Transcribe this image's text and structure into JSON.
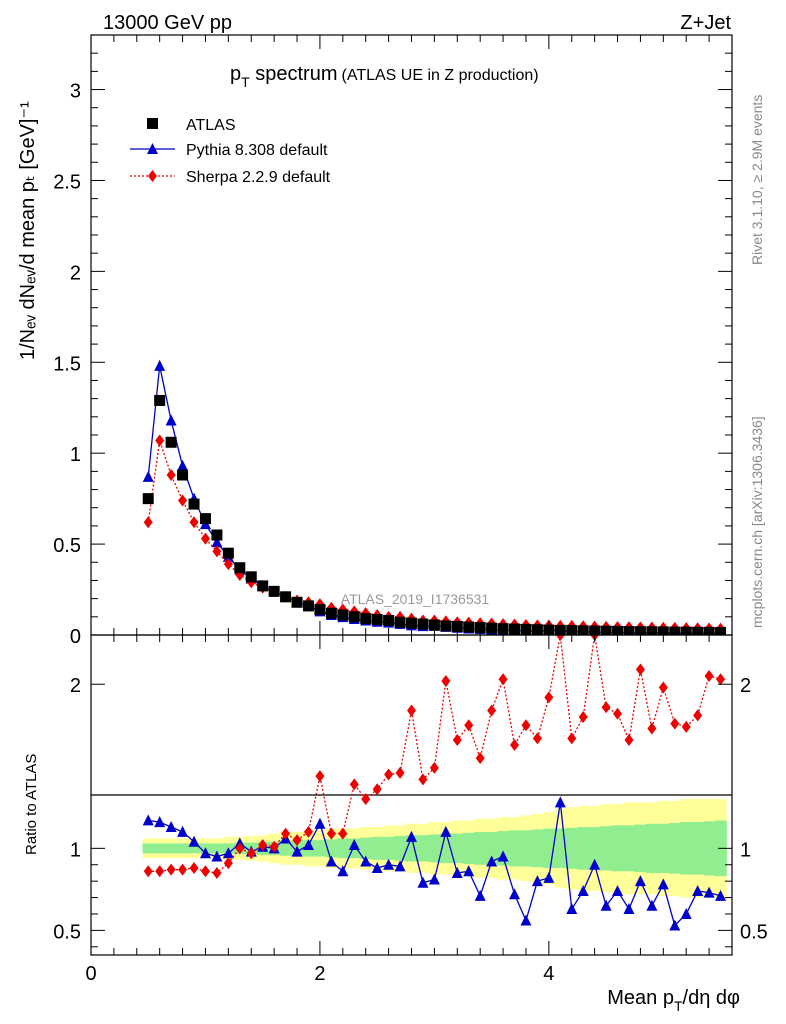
{
  "header": {
    "left": "13000 GeV pp",
    "right": "Z+Jet"
  },
  "side_texts": {
    "rivet": "Rivet 3.1.10, ≥ 2.9M events",
    "mcplots": "mcplots.cern.ch [arXiv:1306.3436]"
  },
  "watermark": "ATLAS_2019_I1736531",
  "chart_data": [
    {
      "type": "scatter",
      "title_main": "p",
      "title_sub": "T",
      "title_rest": " spectrum",
      "title_note": "(ATLAS UE in Z production)",
      "ylabel": "1/Nₑᵥ dNₑᵥ/d mean pₜ [GeV]⁻¹",
      "ylim": [
        0,
        3.3
      ],
      "xlim": [
        0,
        5.6
      ],
      "yticks": [
        0,
        0.5,
        1,
        1.5,
        2,
        2.5,
        3
      ],
      "ytick_labels": [
        "0",
        "0.5",
        "1",
        "1.5",
        "2",
        "2.5",
        "3"
      ],
      "legend_position": "top-left",
      "x": [
        0.5,
        0.6,
        0.7,
        0.8,
        0.9,
        1.0,
        1.1,
        1.2,
        1.3,
        1.4,
        1.5,
        1.6,
        1.7,
        1.8,
        1.9,
        2.0,
        2.1,
        2.2,
        2.3,
        2.4,
        2.5,
        2.6,
        2.7,
        2.8,
        2.9,
        3.0,
        3.1,
        3.2,
        3.3,
        3.4,
        3.5,
        3.6,
        3.7,
        3.8,
        3.9,
        4.0,
        4.1,
        4.2,
        4.3,
        4.4,
        4.5,
        4.6,
        4.7,
        4.8,
        4.9,
        5.0,
        5.1,
        5.2,
        5.3,
        5.4,
        5.5
      ],
      "series": [
        {
          "name": "ATLAS",
          "color": "#000000",
          "marker": "square",
          "values": [
            0.75,
            1.29,
            1.06,
            0.88,
            0.72,
            0.64,
            0.55,
            0.45,
            0.37,
            0.32,
            0.27,
            0.24,
            0.21,
            0.18,
            0.16,
            0.14,
            0.12,
            0.11,
            0.1,
            0.09,
            0.085,
            0.08,
            0.07,
            0.065,
            0.06,
            0.055,
            0.05,
            0.047,
            0.044,
            0.041,
            0.038,
            0.035,
            0.033,
            0.031,
            0.029,
            0.027,
            0.025,
            0.024,
            0.023,
            0.022,
            0.021,
            0.02,
            0.019,
            0.018,
            0.018,
            0.017,
            0.016,
            0.016,
            0.015,
            0.015,
            0.014
          ]
        },
        {
          "name": "Pythia 8.308 default",
          "color": "#0000cc",
          "marker": "triangle",
          "values": [
            0.87,
            1.48,
            1.18,
            0.93,
            0.75,
            0.61,
            0.51,
            0.43,
            0.36,
            0.31,
            0.27,
            0.24,
            0.21,
            0.18,
            0.16,
            0.13,
            0.11,
            0.098,
            0.088,
            0.08,
            0.073,
            0.068,
            0.061,
            0.053,
            0.049,
            0.05,
            0.045,
            0.04,
            0.036,
            0.033,
            0.03,
            0.028,
            0.026,
            0.022,
            0.022,
            0.022,
            0.027,
            0.018,
            0.017,
            0.016,
            0.015,
            0.014,
            0.013,
            0.012,
            0.012,
            0.011,
            0.01,
            0.01,
            0.009,
            0.01,
            0.01
          ]
        },
        {
          "name": "Sherpa 2.2.9 default",
          "color": "#ee0000",
          "marker": "diamond",
          "values": [
            0.62,
            1.07,
            0.88,
            0.74,
            0.62,
            0.53,
            0.46,
            0.39,
            0.33,
            0.29,
            0.26,
            0.24,
            0.21,
            0.19,
            0.18,
            0.17,
            0.15,
            0.14,
            0.13,
            0.12,
            0.11,
            0.1,
            0.1,
            0.09,
            0.08,
            0.08,
            0.075,
            0.07,
            0.068,
            0.065,
            0.063,
            0.06,
            0.058,
            0.055,
            0.053,
            0.052,
            0.05,
            0.05,
            0.048,
            0.047,
            0.045,
            0.044,
            0.043,
            0.042,
            0.041,
            0.04,
            0.039,
            0.038,
            0.037,
            0.036,
            0.035
          ]
        }
      ]
    },
    {
      "type": "scatter",
      "ylabel": "Ratio to ATLAS",
      "xlabel_main": "Mean p",
      "xlabel_sub": "T",
      "xlabel_rest": "/dη dφ",
      "ylim": [
        0.35,
        2.3
      ],
      "xlim": [
        0,
        5.6
      ],
      "reference_line": 1,
      "yticks": [
        0.5,
        1,
        2
      ],
      "ytick_labels": [
        "0.5",
        "1",
        "2"
      ],
      "xticks": [
        0,
        2,
        4
      ],
      "xtick_labels": [
        "0",
        "2",
        "4"
      ],
      "band_colors": {
        "inner": "#90ee90",
        "outer": "#ffff99"
      },
      "bands": {
        "inner_half_width": [
          0.03,
          0.03,
          0.03,
          0.03,
          0.03,
          0.03,
          0.03,
          0.03,
          0.035,
          0.035,
          0.04,
          0.04,
          0.045,
          0.05,
          0.05,
          0.05,
          0.055,
          0.06,
          0.06,
          0.065,
          0.07,
          0.07,
          0.075,
          0.08,
          0.08,
          0.085,
          0.09,
          0.09,
          0.095,
          0.1,
          0.1,
          0.105,
          0.11,
          0.11,
          0.115,
          0.12,
          0.12,
          0.125,
          0.13,
          0.13,
          0.135,
          0.14,
          0.14,
          0.145,
          0.15,
          0.15,
          0.155,
          0.16,
          0.16,
          0.165,
          0.17
        ],
        "outer_half_width": [
          0.06,
          0.06,
          0.06,
          0.06,
          0.06,
          0.06,
          0.06,
          0.07,
          0.07,
          0.075,
          0.08,
          0.09,
          0.1,
          0.1,
          0.11,
          0.11,
          0.12,
          0.12,
          0.12,
          0.13,
          0.13,
          0.14,
          0.14,
          0.15,
          0.15,
          0.16,
          0.16,
          0.17,
          0.17,
          0.18,
          0.18,
          0.19,
          0.19,
          0.2,
          0.21,
          0.22,
          0.24,
          0.25,
          0.26,
          0.26,
          0.27,
          0.27,
          0.28,
          0.28,
          0.28,
          0.29,
          0.29,
          0.3,
          0.3,
          0.3,
          0.3
        ]
      },
      "series": [
        {
          "name": "Pythia 8.308 default",
          "color": "#0000cc",
          "marker": "triangle",
          "values": [
            1.17,
            1.16,
            1.13,
            1.1,
            1.04,
            0.97,
            0.95,
            0.97,
            1.03,
            0.98,
            1.01,
            1.0,
            1.06,
            0.98,
            1.02,
            1.15,
            0.92,
            0.86,
            1.02,
            0.92,
            0.88,
            0.9,
            0.89,
            1.07,
            0.79,
            0.81,
            1.1,
            0.85,
            0.86,
            0.71,
            0.92,
            0.95,
            0.72,
            0.56,
            0.8,
            0.82,
            1.28,
            0.63,
            0.74,
            0.9,
            0.65,
            0.74,
            0.63,
            0.8,
            0.65,
            0.78,
            0.53,
            0.6,
            0.74,
            0.73,
            0.71
          ]
        },
        {
          "name": "Sherpa 2.2.9 default",
          "color": "#ee0000",
          "marker": "diamond",
          "values": [
            0.86,
            0.86,
            0.87,
            0.87,
            0.88,
            0.86,
            0.85,
            0.91,
            1.0,
            0.97,
            1.02,
            1.01,
            1.09,
            1.05,
            1.1,
            1.44,
            1.09,
            1.09,
            1.39,
            1.3,
            1.36,
            1.45,
            1.46,
            1.84,
            1.42,
            1.49,
            2.02,
            1.66,
            1.75,
            1.55,
            1.84,
            2.03,
            1.63,
            1.75,
            1.67,
            1.92,
            2.3,
            1.67,
            1.8,
            2.3,
            1.86,
            1.82,
            1.66,
            2.09,
            1.73,
            1.98,
            1.76,
            1.74,
            1.81,
            2.05,
            2.03
          ]
        }
      ]
    }
  ]
}
